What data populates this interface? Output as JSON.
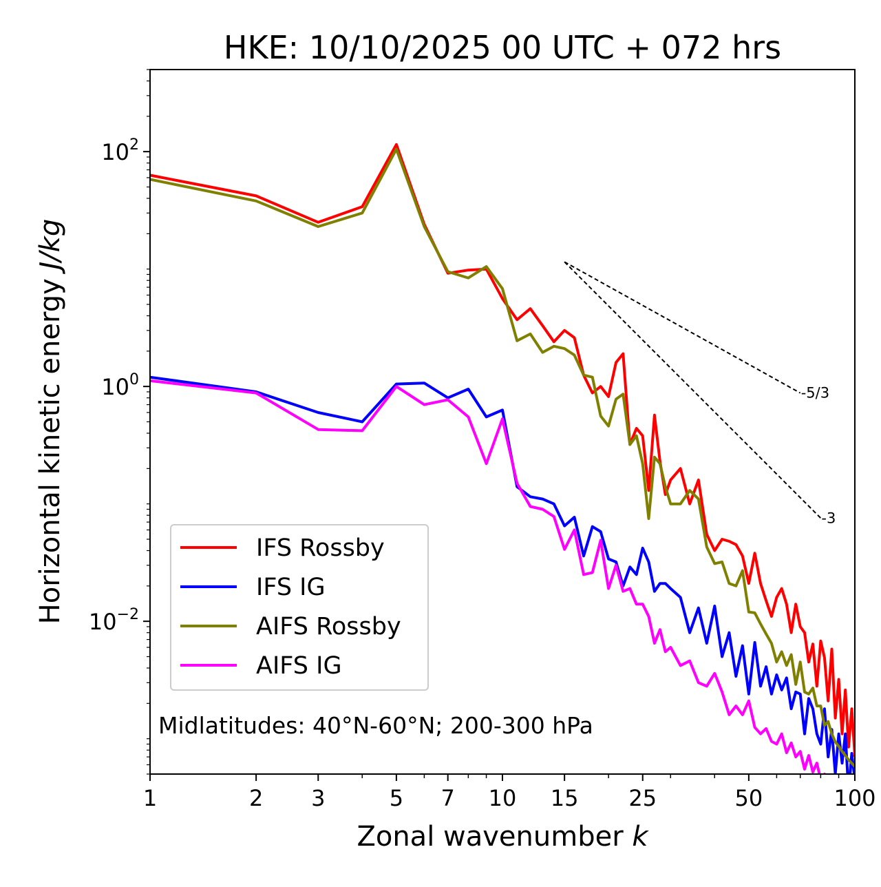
{
  "chart_data": {
    "type": "line",
    "title": "HKE: 10/10/2025 00 UTC + 072 hrs",
    "xlabel": "Zonal wavenumber",
    "xlabel_var": "k",
    "ylabel": "Horizontal kinetic energy",
    "ylabel_unit": "J/kg",
    "xscale": "log",
    "yscale": "log",
    "xlim": [
      1,
      100
    ],
    "ylim": [
      0.0005,
      500
    ],
    "x_ticks": [
      1,
      2,
      3,
      5,
      7,
      10,
      15,
      25,
      50,
      100
    ],
    "x_tick_labels": [
      "1",
      "2",
      "3",
      "5",
      "7",
      "10",
      "15",
      "25",
      "50",
      "100"
    ],
    "y_ticks": [
      {
        "value": 100,
        "base": "10",
        "exp": "2"
      },
      {
        "value": 1,
        "base": "10",
        "exp": "0"
      },
      {
        "value": 0.01,
        "base": "10",
        "exp": "−2"
      }
    ],
    "annotation": "Midlatitudes: 40°N-60°N; 200-300 hPa",
    "legend_position": "lower-left",
    "reference_lines": [
      {
        "label": "-5/3",
        "slope": -1.6667,
        "x": [
          15,
          70
        ],
        "y": [
          11.5,
          0.88
        ]
      },
      {
        "label": "-3",
        "slope": -3,
        "x": [
          15,
          80
        ],
        "y": [
          11.5,
          0.0757
        ]
      }
    ],
    "series": [
      {
        "name": "IFS Rossby",
        "color": "#ff0000",
        "x": [
          1,
          2,
          3,
          4,
          5,
          6,
          7,
          8,
          9,
          10,
          11,
          12,
          13,
          14,
          15,
          16,
          17,
          18,
          19,
          20,
          21,
          22,
          23,
          24,
          25,
          26,
          27,
          28,
          29,
          30,
          32,
          34,
          36,
          38,
          40,
          42,
          44,
          46,
          48,
          50,
          52,
          54,
          56,
          58,
          60,
          62,
          64,
          66,
          68,
          70,
          72,
          74,
          76,
          78,
          80,
          82,
          84,
          86,
          88,
          90,
          92,
          94,
          96,
          98,
          100
        ],
        "y": [
          63,
          42,
          25,
          34,
          115,
          24,
          9.2,
          9.8,
          10,
          5.6,
          3.7,
          4.6,
          3.3,
          2.4,
          3.0,
          2.6,
          1.25,
          0.88,
          1.0,
          0.82,
          1.6,
          1.9,
          0.32,
          0.44,
          0.38,
          0.13,
          0.57,
          0.23,
          0.12,
          0.16,
          0.2,
          0.1,
          0.16,
          0.055,
          0.04,
          0.05,
          0.048,
          0.045,
          0.036,
          0.021,
          0.038,
          0.021,
          0.015,
          0.011,
          0.016,
          0.019,
          0.014,
          0.008,
          0.014,
          0.009,
          0.008,
          0.0045,
          0.0064,
          0.0028,
          0.0068,
          0.0049,
          0.0021,
          0.0058,
          0.0015,
          0.0032,
          0.0011,
          0.0026,
          0.00085,
          0.0018,
          0.00072
        ]
      },
      {
        "name": "IFS IG",
        "color": "#0000ff",
        "x": [
          1,
          2,
          3,
          4,
          5,
          6,
          7,
          8,
          9,
          10,
          11,
          12,
          13,
          14,
          15,
          16,
          17,
          18,
          19,
          20,
          21,
          22,
          23,
          24,
          25,
          26,
          27,
          28,
          29,
          30,
          32,
          34,
          36,
          38,
          40,
          42,
          44,
          46,
          48,
          50,
          52,
          54,
          56,
          58,
          60,
          62,
          64,
          66,
          68,
          70,
          72,
          74,
          76,
          78,
          80,
          82,
          84,
          86,
          88,
          90,
          92,
          94,
          96,
          98,
          100
        ],
        "y": [
          1.2,
          0.9,
          0.6,
          0.5,
          1.05,
          1.07,
          0.8,
          0.95,
          0.55,
          0.63,
          0.14,
          0.115,
          0.11,
          0.1,
          0.065,
          0.077,
          0.036,
          0.064,
          0.058,
          0.034,
          0.032,
          0.02,
          0.029,
          0.025,
          0.042,
          0.032,
          0.018,
          0.021,
          0.021,
          0.019,
          0.016,
          0.008,
          0.013,
          0.0065,
          0.0135,
          0.005,
          0.008,
          0.0034,
          0.0062,
          0.0024,
          0.0066,
          0.0028,
          0.0041,
          0.0024,
          0.0035,
          0.0026,
          0.0033,
          0.0018,
          0.0025,
          0.0024,
          0.0011,
          0.0022,
          0.0018,
          0.0011,
          0.0009,
          0.0018,
          0.0007,
          0.0012,
          0.0005,
          0.0011,
          0.00062,
          0.0011,
          0.00035,
          0.00075,
          0.00045
        ]
      },
      {
        "name": "AIFS Rossby",
        "color": "#808000",
        "x": [
          1,
          2,
          3,
          4,
          5,
          6,
          7,
          8,
          9,
          10,
          11,
          12,
          13,
          14,
          15,
          16,
          17,
          18,
          19,
          20,
          21,
          22,
          23,
          24,
          25,
          26,
          27,
          28,
          29,
          30,
          32,
          34,
          36,
          38,
          40,
          42,
          44,
          46,
          48,
          50,
          52,
          54,
          56,
          58,
          60,
          62,
          64,
          66,
          68,
          70,
          72,
          74,
          76,
          78,
          80,
          82,
          84,
          86,
          88,
          90,
          92,
          94,
          96,
          98,
          100
        ],
        "y": [
          58,
          38,
          23,
          30,
          105,
          23,
          9.5,
          8.4,
          10.5,
          6.8,
          2.45,
          2.8,
          1.95,
          2.2,
          2.1,
          1.85,
          1.25,
          1.2,
          0.56,
          0.46,
          0.78,
          0.86,
          0.32,
          0.38,
          0.22,
          0.075,
          0.25,
          0.22,
          0.14,
          0.1,
          0.1,
          0.13,
          0.11,
          0.043,
          0.031,
          0.032,
          0.021,
          0.02,
          0.027,
          0.012,
          0.0118,
          0.0095,
          0.0078,
          0.0065,
          0.0045,
          0.0055,
          0.0042,
          0.0052,
          0.0029,
          0.0045,
          0.0025,
          0.0024,
          0.0027,
          0.0019,
          0.0019,
          0.0013,
          0.0014,
          0.0011,
          0.00094,
          0.00086,
          0.00078,
          0.00072,
          0.00066,
          0.00062,
          0.00058
        ]
      },
      {
        "name": "AIFS IG",
        "color": "#ff00ff",
        "x": [
          1,
          2,
          3,
          4,
          5,
          6,
          7,
          8,
          9,
          10,
          11,
          12,
          13,
          14,
          15,
          16,
          17,
          18,
          19,
          20,
          21,
          22,
          23,
          24,
          25,
          26,
          27,
          28,
          29,
          30,
          32,
          34,
          36,
          38,
          40,
          42,
          44,
          46,
          48,
          50,
          52,
          54,
          56,
          58,
          60,
          62,
          64,
          66,
          68,
          70,
          72,
          74,
          76,
          78,
          80,
          82,
          84,
          86,
          88,
          90,
          92,
          94,
          96,
          98,
          100
        ],
        "y": [
          1.12,
          0.88,
          0.43,
          0.42,
          1.0,
          0.7,
          0.77,
          0.55,
          0.22,
          0.53,
          0.15,
          0.095,
          0.09,
          0.078,
          0.041,
          0.06,
          0.025,
          0.026,
          0.049,
          0.019,
          0.03,
          0.018,
          0.019,
          0.014,
          0.014,
          0.011,
          0.0065,
          0.0085,
          0.0055,
          0.006,
          0.0042,
          0.0046,
          0.003,
          0.0028,
          0.0036,
          0.0025,
          0.0016,
          0.0019,
          0.0016,
          0.0021,
          0.00125,
          0.0011,
          0.00122,
          0.00095,
          0.0009,
          0.0011,
          0.00076,
          0.00092,
          0.0007,
          0.00078,
          0.00055,
          0.00072,
          0.00052,
          0.00062,
          0.00045,
          0.0005,
          0.0004,
          0.00046,
          0.00036,
          0.0004,
          0.00032,
          0.00035,
          0.00028,
          0.0003,
          0.00026
        ]
      }
    ]
  }
}
